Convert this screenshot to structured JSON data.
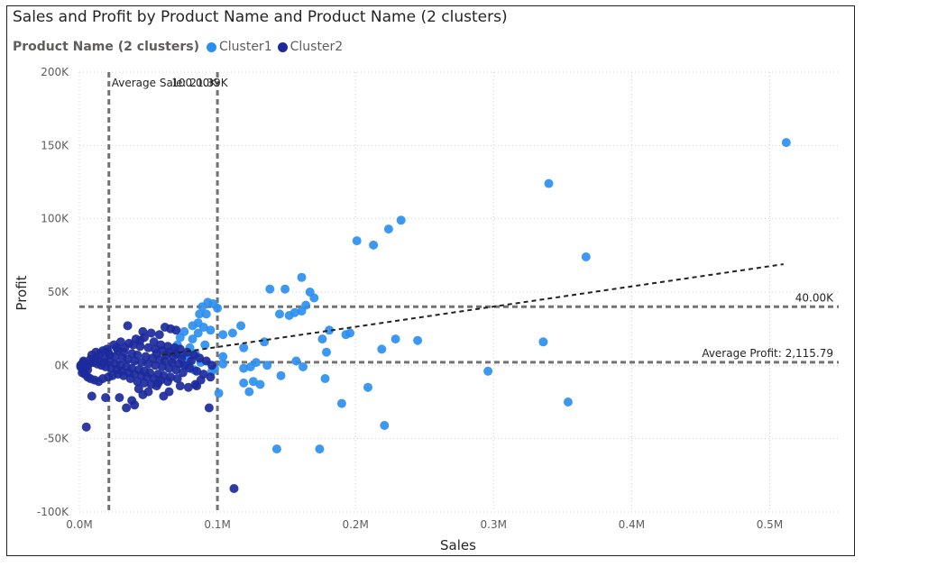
{
  "colors": {
    "cluster1": "#2b8ff0",
    "cluster2": "#1d2a9c",
    "reference_line": "#737373",
    "trend_line": "#222222",
    "grid": "#d0d0d0"
  },
  "chart_data": {
    "type": "scatter",
    "title": "Sales and Profit by Product Name and Product Name (2 clusters)",
    "legend": {
      "title": "Product Name (2 clusters)",
      "placement": "top-left",
      "entries": [
        "Cluster1",
        "Cluster2"
      ]
    },
    "xlabel": "Sales",
    "ylabel": "Profit",
    "xlim": [
      0,
      0.55
    ],
    "ylim": [
      -100000,
      200000
    ],
    "x_ticks": [
      0,
      0.1,
      0.2,
      0.3,
      0.4,
      0.5
    ],
    "x_tick_labels": [
      "0.0M",
      "0.1M",
      "0.2M",
      "0.3M",
      "0.4M",
      "0.5M"
    ],
    "y_ticks": [
      -100000,
      -50000,
      0,
      50000,
      100000,
      150000,
      200000
    ],
    "y_tick_labels": [
      "-100K",
      "-50K",
      "0K",
      "50K",
      "100K",
      "150K",
      "200K"
    ],
    "grid": true,
    "reference_lines": [
      {
        "axis": "x",
        "value": 0.02139,
        "label": "Average Sale: 21.39K"
      },
      {
        "axis": "x",
        "value": 0.1,
        "label": "100.00K"
      },
      {
        "axis": "y",
        "value": 40000,
        "label": "40.00K"
      },
      {
        "axis": "y",
        "value": 2115.79,
        "label": "Average Profit: 2,115.79"
      }
    ],
    "trend_line": {
      "x": [
        0.06,
        0.51
      ],
      "y": [
        7000,
        69000
      ]
    },
    "series": [
      {
        "name": "Cluster1",
        "points": [
          [
            0.512,
            152000
          ],
          [
            0.34,
            124000
          ],
          [
            0.367,
            74000
          ],
          [
            0.233,
            99000
          ],
          [
            0.224,
            93000
          ],
          [
            0.201,
            85000
          ],
          [
            0.213,
            82000
          ],
          [
            0.138,
            52000
          ],
          [
            0.149,
            52000
          ],
          [
            0.161,
            60000
          ],
          [
            0.167,
            50000
          ],
          [
            0.17,
            46000
          ],
          [
            0.152,
            34000
          ],
          [
            0.156,
            36000
          ],
          [
            0.161,
            37000
          ],
          [
            0.145,
            35000
          ],
          [
            0.164,
            41000
          ],
          [
            0.336,
            16000
          ],
          [
            0.245,
            17000
          ],
          [
            0.229,
            18000
          ],
          [
            0.219,
            11000
          ],
          [
            0.193,
            21000
          ],
          [
            0.196,
            22000
          ],
          [
            0.181,
            24000
          ],
          [
            0.176,
            18000
          ],
          [
            0.179,
            9000
          ],
          [
            0.134,
            16000
          ],
          [
            0.119,
            12000
          ],
          [
            0.117,
            27000
          ],
          [
            0.104,
            21000
          ],
          [
            0.111,
            22000
          ],
          [
            0.296,
            -4000
          ],
          [
            0.354,
            -25000
          ],
          [
            0.221,
            -41000
          ],
          [
            0.209,
            -15000
          ],
          [
            0.19,
            -26000
          ],
          [
            0.178,
            -9000
          ],
          [
            0.143,
            -57000
          ],
          [
            0.174,
            -57000
          ],
          [
            0.157,
            3000
          ],
          [
            0.162,
            -1000
          ],
          [
            0.146,
            -7000
          ],
          [
            0.136,
            0
          ],
          [
            0.128,
            2000
          ],
          [
            0.124,
            -1000
          ],
          [
            0.119,
            -2000
          ],
          [
            0.119,
            -12000
          ],
          [
            0.126,
            -11000
          ],
          [
            0.123,
            -18000
          ],
          [
            0.131,
            -13000
          ],
          [
            0.101,
            -19000
          ],
          [
            0.104,
            6000
          ],
          [
            0.104,
            1000
          ],
          [
            0.098,
            -2000
          ],
          [
            0.096,
            -4000
          ],
          [
            0.097,
            42000
          ],
          [
            0.093,
            43000
          ],
          [
            0.089,
            40000
          ],
          [
            0.087,
            35000
          ],
          [
            0.092,
            35000
          ],
          [
            0.086,
            22000
          ],
          [
            0.082,
            18000
          ],
          [
            0.08,
            12000
          ],
          [
            0.084,
            8000
          ],
          [
            0.079,
            5000
          ],
          [
            0.078,
            0
          ],
          [
            0.083,
            -3000
          ],
          [
            0.088,
            2000
          ],
          [
            0.076,
            23000
          ],
          [
            0.073,
            19000
          ],
          [
            0.071,
            14000
          ],
          [
            0.069,
            10000
          ],
          [
            0.075,
            7000
          ],
          [
            0.09,
            26000
          ],
          [
            0.095,
            24000
          ],
          [
            0.091,
            14000
          ],
          [
            0.1,
            39000
          ],
          [
            0.086,
            29000
          ],
          [
            0.082,
            27000
          ]
        ]
      },
      {
        "name": "Cluster2",
        "points": [
          [
            0.112,
            -84000
          ],
          [
            0.005,
            -42000
          ],
          [
            0.094,
            -29000
          ],
          [
            0.034,
            -29000
          ],
          [
            0.04,
            -27000
          ],
          [
            0.029,
            -22000
          ],
          [
            0.009,
            -21000
          ],
          [
            0.019,
            -22000
          ],
          [
            0.065,
            -18000
          ],
          [
            0.05,
            -18000
          ],
          [
            0.056,
            -14000
          ],
          [
            0.043,
            -16000
          ],
          [
            0.035,
            27000
          ],
          [
            0.062,
            26000
          ],
          [
            0.066,
            25000
          ],
          [
            0.07,
            24000
          ],
          [
            0.052,
            22000
          ],
          [
            0.058,
            21000
          ],
          [
            0.047,
            19000
          ],
          [
            0.041,
            18000
          ],
          [
            0.03,
            16000
          ],
          [
            0.036,
            15000
          ],
          [
            0.025,
            14000
          ],
          [
            0.044,
            13000
          ],
          [
            0.05,
            12000
          ],
          [
            0.055,
            11000
          ],
          [
            0.06,
            10000
          ],
          [
            0.065,
            9000
          ],
          [
            0.07,
            8000
          ],
          [
            0.02,
            11000
          ],
          [
            0.028,
            10000
          ],
          [
            0.032,
            9000
          ],
          [
            0.038,
            8000
          ],
          [
            0.042,
            7000
          ],
          [
            0.048,
            6000
          ],
          [
            0.053,
            5000
          ],
          [
            0.058,
            4000
          ],
          [
            0.062,
            3000
          ],
          [
            0.067,
            2000
          ],
          [
            0.072,
            1000
          ],
          [
            0.076,
            0
          ],
          [
            0.08,
            -2000
          ],
          [
            0.085,
            -4000
          ],
          [
            0.09,
            -6000
          ],
          [
            0.095,
            -8000
          ],
          [
            0.081,
            3000
          ],
          [
            0.074,
            5000
          ],
          [
            0.068,
            6000
          ],
          [
            0.063,
            7000
          ],
          [
            0.056,
            8000
          ],
          [
            0.015,
            8000
          ],
          [
            0.012,
            6000
          ],
          [
            0.018,
            5000
          ],
          [
            0.022,
            7000
          ],
          [
            0.026,
            6000
          ],
          [
            0.031,
            5000
          ],
          [
            0.035,
            4000
          ],
          [
            0.04,
            3000
          ],
          [
            0.045,
            2000
          ],
          [
            0.05,
            1000
          ],
          [
            0.055,
            0
          ],
          [
            0.06,
            -1000
          ],
          [
            0.065,
            -2000
          ],
          [
            0.07,
            -3000
          ],
          [
            0.075,
            -5000
          ],
          [
            0.008,
            4000
          ],
          [
            0.01,
            2000
          ],
          [
            0.013,
            1000
          ],
          [
            0.016,
            0
          ],
          [
            0.019,
            -1000
          ],
          [
            0.023,
            -2000
          ],
          [
            0.027,
            -3000
          ],
          [
            0.031,
            -4000
          ],
          [
            0.036,
            -5000
          ],
          [
            0.04,
            -6000
          ],
          [
            0.045,
            -7000
          ],
          [
            0.049,
            -8000
          ],
          [
            0.054,
            -9000
          ],
          [
            0.059,
            -10000
          ],
          [
            0.064,
            -11000
          ],
          [
            0.003,
            2000
          ],
          [
            0.004,
            0
          ],
          [
            0.005,
            -1000
          ],
          [
            0.006,
            -3000
          ],
          [
            0.007,
            1000
          ],
          [
            0.002,
            -2000
          ],
          [
            0.003,
            -4000
          ],
          [
            0.004,
            -6000
          ],
          [
            0.006,
            -8000
          ],
          [
            0.008,
            -9000
          ],
          [
            0.011,
            -10000
          ],
          [
            0.014,
            -11000
          ],
          [
            0.017,
            -9000
          ],
          [
            0.021,
            -8000
          ],
          [
            0.024,
            -7000
          ],
          [
            0.028,
            -6000
          ],
          [
            0.032,
            -7000
          ],
          [
            0.037,
            -9000
          ],
          [
            0.042,
            -11000
          ],
          [
            0.047,
            -12000
          ],
          [
            0.052,
            -13000
          ],
          [
            0.057,
            -12000
          ],
          [
            0.044,
            17000
          ],
          [
            0.039,
            14000
          ],
          [
            0.033,
            12000
          ],
          [
            0.027,
            12000
          ],
          [
            0.021,
            9000
          ],
          [
            0.017,
            10000
          ],
          [
            0.012,
            9000
          ],
          [
            0.009,
            7000
          ],
          [
            0.011,
            4000
          ],
          [
            0.014,
            3000
          ],
          [
            0.018,
            2000
          ],
          [
            0.022,
            3000
          ],
          [
            0.026,
            1000
          ],
          [
            0.03,
            0
          ],
          [
            0.034,
            -1000
          ],
          [
            0.038,
            -2000
          ],
          [
            0.043,
            -3000
          ],
          [
            0.047,
            -4000
          ],
          [
            0.051,
            -5000
          ],
          [
            0.057,
            -6000
          ],
          [
            0.061,
            -7000
          ],
          [
            0.066,
            -8000
          ],
          [
            0.071,
            -9000
          ],
          [
            0.046,
            23000
          ],
          [
            0.054,
            16000
          ],
          [
            0.059,
            14000
          ],
          [
            0.064,
            13000
          ],
          [
            0.069,
            12000
          ],
          [
            0.073,
            11000
          ],
          [
            0.078,
            9000
          ],
          [
            0.083,
            7000
          ],
          [
            0.087,
            5000
          ],
          [
            0.092,
            3000
          ],
          [
            0.096,
            0
          ],
          [
            0.088,
            -10000
          ],
          [
            0.084,
            -13000
          ],
          [
            0.079,
            -15000
          ],
          [
            0.073,
            -14000
          ],
          [
            0.002,
            1000
          ],
          [
            0.001,
            0
          ],
          [
            0.001,
            -1000
          ],
          [
            0.002,
            -5000
          ],
          [
            0.003,
            3000
          ],
          [
            0.085,
            -14000
          ],
          [
            0.061,
            -21000
          ],
          [
            0.046,
            -20000
          ],
          [
            0.038,
            -24000
          ]
        ]
      }
    ]
  }
}
